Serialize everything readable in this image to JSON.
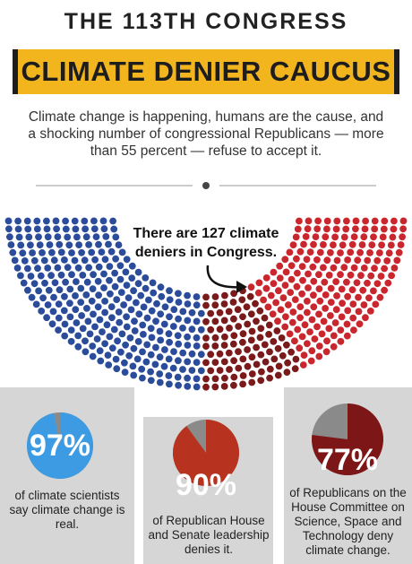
{
  "header": {
    "title": "THE 113TH CONGRESS",
    "banner": "CLIMATE DENIER CAUCUS",
    "intro": "Climate change is happening, humans are the cause, and a shocking number of congressional Republicans — more than 55 percent — refuse to accept it."
  },
  "hemicycle": {
    "callout": "There are 127 climate deniers in Congress."
  },
  "panels": [
    {
      "value": 97,
      "value_label": "97%",
      "caption": "of climate scientists say climate change is real.",
      "color": "#3d9be3"
    },
    {
      "value": 90,
      "value_label": "90%",
      "caption": "of Republican House and Senate leadership denies it.",
      "color": "#b8331f"
    },
    {
      "value": 77,
      "value_label": "77%",
      "caption": "of Republicans on the House Committee on Science, Space and Technology deny climate change.",
      "color": "#7d1616"
    }
  ]
}
